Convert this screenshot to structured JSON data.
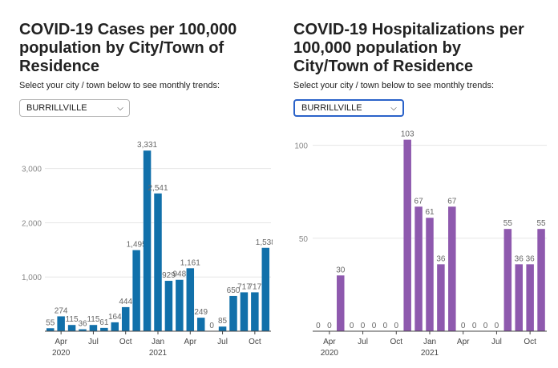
{
  "panels": [
    {
      "title": "COVID-19 Cases per 100,000 population by City/Town of Residence",
      "prompt": "Select your city / town below to see monthly trends:",
      "select_value": "BURRILLVILLE"
    },
    {
      "title": "COVID-19 Hospitalizations per 100,000 population by City/Town of Residence",
      "prompt": "Select your city / town below to see monthly trends:",
      "select_value": "BURRILLVILLE"
    }
  ],
  "chart_data": [
    {
      "type": "bar",
      "title": "COVID-19 Cases per 100,000 population by City/Town of Residence",
      "categories": [
        "Mar 2020",
        "Apr 2020",
        "May 2020",
        "Jun 2020",
        "Jul 2020",
        "Aug 2020",
        "Sep 2020",
        "Oct 2020",
        "Nov 2020",
        "Dec 2020",
        "Jan 2021",
        "Feb 2021",
        "Mar 2021",
        "Apr 2021",
        "May 2021",
        "Jun 2021",
        "Jul 2021",
        "Aug 2021",
        "Sep 2021",
        "Oct 2021",
        "Nov 2021"
      ],
      "values": [
        55,
        274,
        115,
        36,
        115,
        61,
        164,
        444,
        1495,
        3331,
        2541,
        929,
        948,
        1161,
        249,
        0,
        85,
        650,
        717,
        717,
        1538
      ],
      "data_labels": [
        "55",
        "274",
        "115",
        "36",
        "115",
        "61",
        "164",
        "444",
        "1,495",
        "3,331",
        "2,541",
        "929",
        "948",
        "1,161",
        "249",
        "0",
        "85",
        "650",
        "717",
        "717",
        "1,538"
      ],
      "ylim": [
        0,
        3600
      ],
      "yticks": [
        1000,
        2000,
        3000
      ],
      "ytick_labels": [
        "1,000",
        "2,000",
        "3,000"
      ],
      "xtick_labels": [
        {
          "index": 1,
          "label": "Apr",
          "sub": "2020"
        },
        {
          "index": 4,
          "label": "Jul",
          "sub": ""
        },
        {
          "index": 7,
          "label": "Oct",
          "sub": ""
        },
        {
          "index": 10,
          "label": "Jan",
          "sub": "2021"
        },
        {
          "index": 13,
          "label": "Apr",
          "sub": ""
        },
        {
          "index": 16,
          "label": "Jul",
          "sub": ""
        },
        {
          "index": 19,
          "label": "Oct",
          "sub": ""
        }
      ],
      "color": "#1170aa",
      "grid": true
    },
    {
      "type": "bar",
      "title": "COVID-19 Hospitalizations per 100,000 population by City/Town of Residence",
      "categories": [
        "Mar 2020",
        "Apr 2020",
        "May 2020",
        "Jun 2020",
        "Jul 2020",
        "Aug 2020",
        "Sep 2020",
        "Oct 2020",
        "Nov 2020",
        "Dec 2020",
        "Jan 2021",
        "Feb 2021",
        "Mar 2021",
        "Apr 2021",
        "May 2021",
        "Jun 2021",
        "Jul 2021",
        "Aug 2021",
        "Sep 2021",
        "Oct 2021",
        "Nov 2021"
      ],
      "values": [
        0,
        0,
        30,
        0,
        0,
        0,
        0,
        0,
        103,
        67,
        61,
        36,
        67,
        0,
        0,
        0,
        0,
        55,
        36,
        36,
        55
      ],
      "data_labels": [
        "0",
        "0",
        "30",
        "0",
        "0",
        "0",
        "0",
        "0",
        "103",
        "67",
        "61",
        "36",
        "67",
        "0",
        "0",
        "0",
        "0",
        "55",
        "36",
        "36",
        "55"
      ],
      "ylim": [
        0,
        105
      ],
      "yticks": [
        50,
        100
      ],
      "ytick_labels": [
        "50",
        "100"
      ],
      "xtick_labels": [
        {
          "index": 1,
          "label": "Apr",
          "sub": "2020"
        },
        {
          "index": 4,
          "label": "Jul",
          "sub": ""
        },
        {
          "index": 7,
          "label": "Oct",
          "sub": ""
        },
        {
          "index": 10,
          "label": "Jan",
          "sub": "2021"
        },
        {
          "index": 13,
          "label": "Apr",
          "sub": ""
        },
        {
          "index": 16,
          "label": "Jul",
          "sub": ""
        },
        {
          "index": 19,
          "label": "Oct",
          "sub": ""
        }
      ],
      "color": "#8e59ae",
      "grid": true
    }
  ]
}
